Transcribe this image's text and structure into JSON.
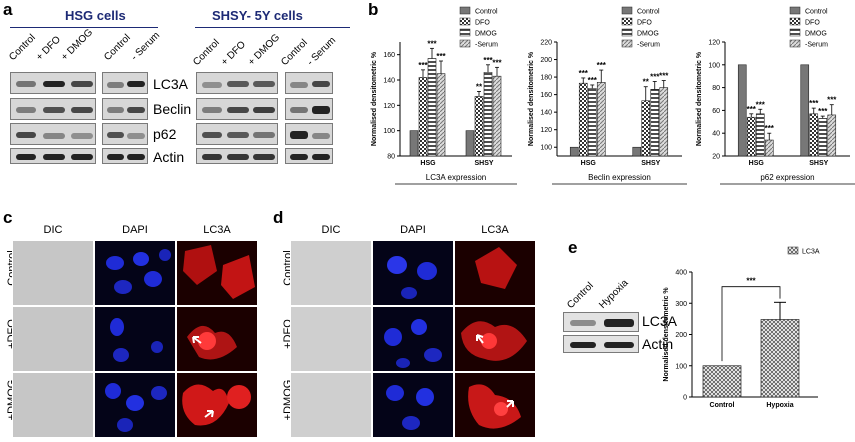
{
  "panels": {
    "a": "a",
    "b": "b",
    "c": "c",
    "d": "d",
    "e": "e"
  },
  "panel_a": {
    "hsg_title": "HSG cells",
    "shsy_title": "SHSY- 5Y cells",
    "row_labels": [
      "LC3A",
      "Beclin",
      "p62",
      "Actin"
    ],
    "hsg_left_lanes": [
      "Control",
      "+ DFO",
      "+ DMOG"
    ],
    "hsg_right_lanes": [
      "Control",
      "- Serum"
    ],
    "shsy_left_lanes": [
      "Control",
      "+ DFO",
      "+ DMOG"
    ],
    "shsy_right_lanes": [
      "Control",
      "- Serum"
    ]
  },
  "panel_c": {
    "columns": [
      "DIC",
      "DAPI",
      "LC3A"
    ],
    "rows": [
      "Control",
      "+DFO",
      "+DMOG"
    ]
  },
  "panel_d": {
    "columns": [
      "DIC",
      "DAPI",
      "LC3A"
    ],
    "rows": [
      "Control",
      "+DFO",
      "+DMOG"
    ]
  },
  "panel_e": {
    "lanes": [
      "Control",
      "Hypoxia"
    ],
    "row_labels": [
      "LC3A",
      "Actin"
    ]
  },
  "colors": {
    "bar_control": "#777777",
    "bar_stroke": "#222222",
    "title_blue": "#1d2a75",
    "arrow": "#ffffff"
  },
  "chart_data": [
    {
      "type": "bar",
      "categories": [
        "HSG",
        "SHSY"
      ],
      "series": [
        {
          "name": "Control",
          "values": [
            100,
            100
          ],
          "errors": [
            0,
            0
          ],
          "marks": [
            "",
            ""
          ]
        },
        {
          "name": "DFO",
          "values": [
            142,
            127
          ],
          "errors": [
            6,
            4
          ],
          "marks": [
            "***",
            "**"
          ]
        },
        {
          "name": "DMOG",
          "values": [
            157,
            146
          ],
          "errors": [
            8,
            6
          ],
          "marks": [
            "***",
            "***"
          ]
        },
        {
          "name": "-Serum",
          "values": [
            145,
            143
          ],
          "errors": [
            10,
            7
          ],
          "marks": [
            "***",
            "***"
          ]
        }
      ],
      "xlabel": "LC3A expression",
      "ylabel": "Normalised densitometric %",
      "ylim": [
        80,
        170
      ],
      "yticks": [
        80,
        100,
        120,
        140,
        160
      ],
      "legend": "top"
    },
    {
      "type": "bar",
      "categories": [
        "HSG",
        "SHSY"
      ],
      "series": [
        {
          "name": "Control",
          "values": [
            100,
            100
          ],
          "errors": [
            0,
            0
          ],
          "marks": [
            "",
            ""
          ]
        },
        {
          "name": "DFO",
          "values": [
            173,
            153
          ],
          "errors": [
            6,
            16
          ],
          "marks": [
            "***",
            "**"
          ]
        },
        {
          "name": "DMOG",
          "values": [
            167,
            166
          ],
          "errors": [
            4,
            9
          ],
          "marks": [
            "***",
            "***"
          ]
        },
        {
          "name": "-Serum",
          "values": [
            174,
            168
          ],
          "errors": [
            14,
            8
          ],
          "marks": [
            "***",
            "***"
          ]
        }
      ],
      "xlabel": "Beclin expression",
      "ylabel": "Normalised densitometric %",
      "ylim": [
        90,
        220
      ],
      "yticks": [
        100,
        120,
        140,
        160,
        180,
        200,
        220
      ],
      "legend": "top"
    },
    {
      "type": "bar",
      "categories": [
        "HSG",
        "SHSY"
      ],
      "series": [
        {
          "name": "Control",
          "values": [
            100,
            100
          ],
          "errors": [
            0,
            0
          ],
          "marks": [
            "",
            ""
          ]
        },
        {
          "name": "DFO",
          "values": [
            54,
            57
          ],
          "errors": [
            3,
            5
          ],
          "marks": [
            "***",
            "***"
          ]
        },
        {
          "name": "DMOG",
          "values": [
            57,
            53
          ],
          "errors": [
            4,
            2
          ],
          "marks": [
            "***",
            "***"
          ]
        },
        {
          "name": "-Serum",
          "values": [
            34,
            56
          ],
          "errors": [
            6,
            9
          ],
          "marks": [
            "***",
            "***"
          ]
        }
      ],
      "xlabel": "p62 expression",
      "ylabel": "Normalised densitometric %",
      "ylim": [
        20,
        120
      ],
      "yticks": [
        20,
        40,
        60,
        80,
        100,
        120
      ],
      "legend": "top"
    },
    {
      "type": "bar",
      "categories": [
        "Control",
        "Hypoxia"
      ],
      "series": [
        {
          "name": "LC3A",
          "values": [
            100,
            248
          ],
          "errors": [
            0,
            55
          ],
          "marks": [
            "",
            ""
          ]
        }
      ],
      "significance": "***",
      "ylabel": "Normalised densitometric %",
      "ylim": [
        0,
        400
      ],
      "yticks": [
        0,
        100,
        200,
        300,
        400
      ],
      "legend": "top-right"
    }
  ]
}
